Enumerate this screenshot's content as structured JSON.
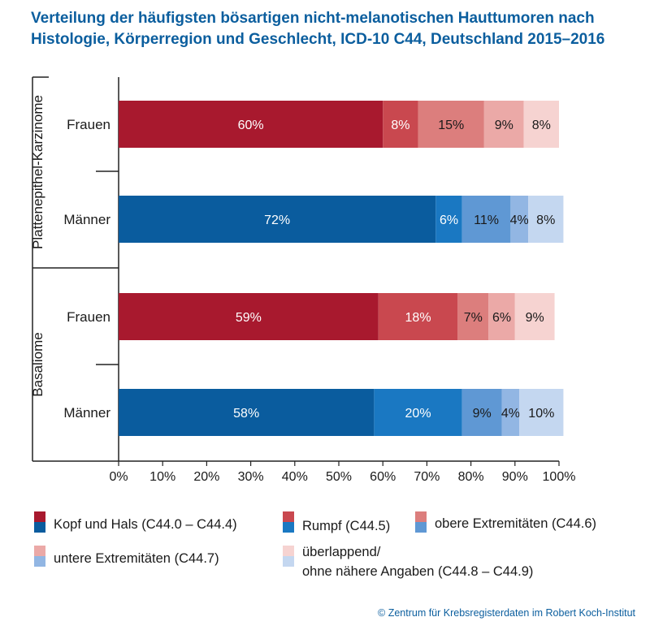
{
  "title": "Verteilung der häufigsten bösartigen nicht-melanotischen Hauttumoren nach Histologie, Körperregion und Geschlecht, ICD-10 C44, Deutschland 2015–2016",
  "chart_data": {
    "type": "bar",
    "orientation": "horizontal",
    "stacked": true,
    "xlim": [
      0,
      100
    ],
    "x_ticks": [
      "0%",
      "10%",
      "20%",
      "30%",
      "40%",
      "50%",
      "60%",
      "70%",
      "80%",
      "90%",
      "100%"
    ],
    "groups": [
      {
        "label": "Plattenepithel-Karzinome",
        "rows": [
          {
            "label": "Frauen",
            "sex": "f",
            "values": [
              60,
              8,
              15,
              9,
              8
            ],
            "labels": [
              "60%",
              "8%",
              "15%",
              "9%",
              "8%"
            ]
          },
          {
            "label": "Männer",
            "sex": "m",
            "values": [
              72,
              6,
              11,
              4,
              8
            ],
            "labels": [
              "72%",
              "6%",
              "11%",
              "4%",
              "8%"
            ]
          }
        ]
      },
      {
        "label": "Basaliome",
        "rows": [
          {
            "label": "Frauen",
            "sex": "f",
            "values": [
              59,
              18,
              7,
              6,
              9
            ],
            "labels": [
              "59%",
              "18%",
              "7%",
              "6%",
              "9%"
            ]
          },
          {
            "label": "Männer",
            "sex": "m",
            "values": [
              58,
              20,
              9,
              4,
              10
            ],
            "labels": [
              "58%",
              "20%",
              "9%",
              "4%",
              "10%"
            ]
          }
        ]
      }
    ],
    "series": [
      {
        "name": "Kopf und Hals (C44.0 – C44.4)",
        "color_f": "#a8192e",
        "color_m": "#0a5c9e"
      },
      {
        "name": "Rumpf (C44.5)",
        "color_f": "#c9484f",
        "color_m": "#1a78c2"
      },
      {
        "name": "obere Extremitäten (C44.6)",
        "color_f": "#dc7e7d",
        "color_m": "#5f98d4"
      },
      {
        "name": "untere Extremitäten (C44.7)",
        "color_f": "#eba9a7",
        "color_m": "#92b6e3"
      },
      {
        "name": "überlappend/\nohne nähere Angaben (C44.8 – C44.9)",
        "color_f": "#f6d3d1",
        "color_m": "#c4d7f0"
      }
    ],
    "legend_placement": "bottom",
    "grid": false
  },
  "legend": {
    "items": [
      {
        "line1": "Kopf und Hals (C44.0 – C44.4)",
        "line2": ""
      },
      {
        "line1": "Rumpf (C44.5)",
        "line2": ""
      },
      {
        "line1": "obere Extremitäten (C44.6)",
        "line2": ""
      },
      {
        "line1": "untere Extremitäten (C44.7)",
        "line2": ""
      },
      {
        "line1": "überlappend/",
        "line2": "ohne nähere Angaben (C44.8 – C44.9)"
      }
    ]
  },
  "credit": "© Zentrum für Krebsregisterdaten im Robert Koch-Institut"
}
